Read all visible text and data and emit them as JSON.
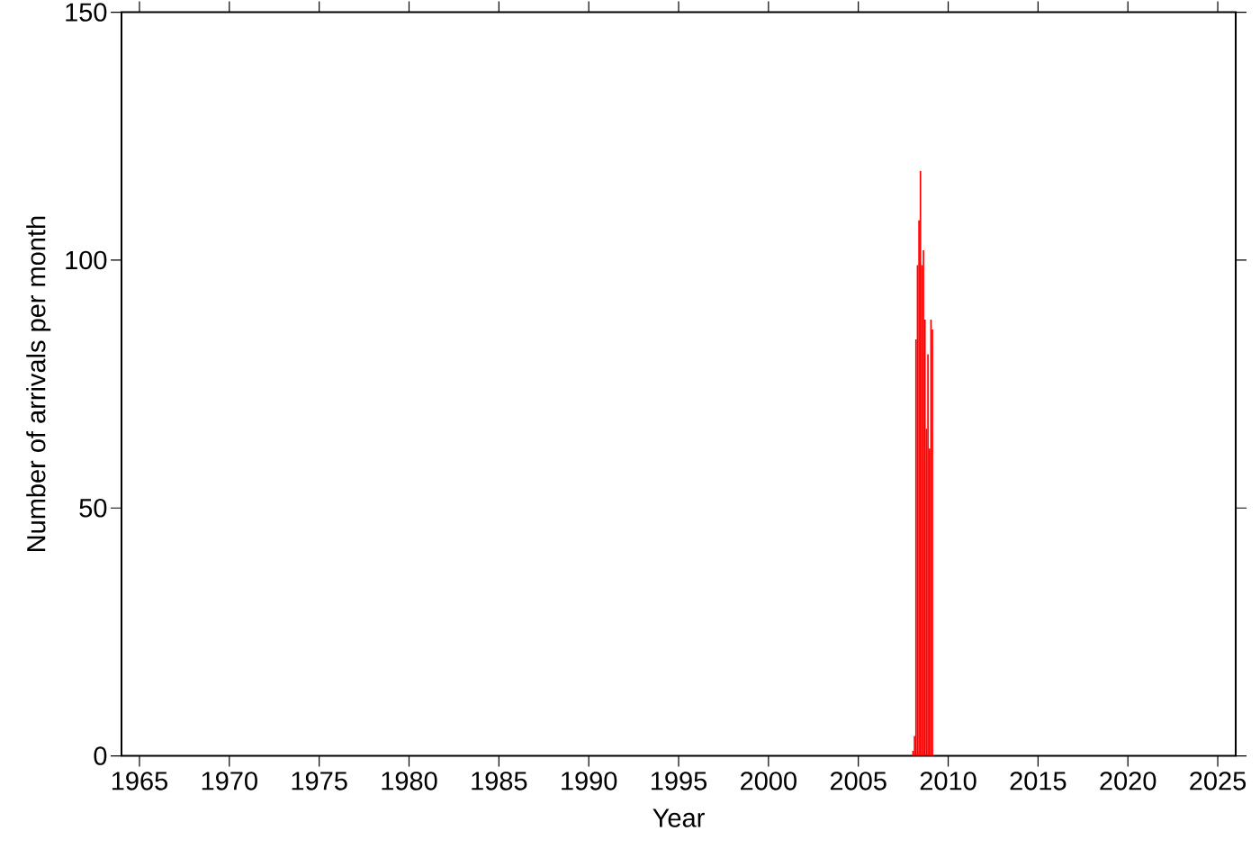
{
  "chart_data": {
    "type": "bar",
    "xlabel": "Year",
    "ylabel": "Number of arrivals per month",
    "x": [
      "2008-01",
      "2008-02",
      "2008-03",
      "2008-04",
      "2008-05",
      "2008-06",
      "2008-07",
      "2008-08",
      "2008-09",
      "2008-10",
      "2008-11",
      "2008-12",
      "2009-01",
      "2009-02"
    ],
    "values": [
      1,
      4,
      84,
      99,
      108,
      118,
      99,
      102,
      88,
      66,
      81,
      62,
      88,
      86
    ],
    "color": "#ff0000",
    "xlim": [
      "1964",
      "2026"
    ],
    "xticks": [
      "1965",
      "1970",
      "1975",
      "1980",
      "1985",
      "1990",
      "1995",
      "2000",
      "2005",
      "2010",
      "2015",
      "2020",
      "2025"
    ],
    "ylim": [
      0,
      150
    ],
    "yticks": [
      0,
      50,
      100,
      150
    ],
    "grid": false
  }
}
